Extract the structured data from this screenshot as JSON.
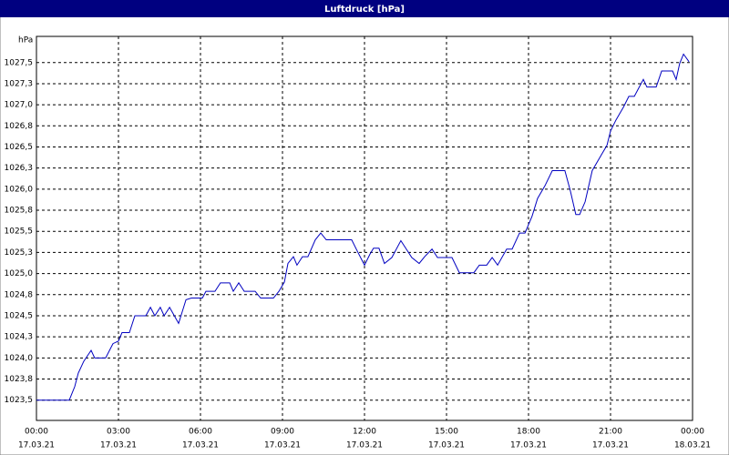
{
  "chart_data": {
    "type": "line",
    "title": "Luftdruck [hPa]",
    "y_unit": "hPa",
    "x": [
      0,
      1.2,
      1.4,
      1.53,
      1.73,
      2,
      2.13,
      2.53,
      2.8,
      3,
      3.13,
      3.4,
      3.6,
      4,
      4.17,
      4.33,
      4.53,
      4.67,
      4.87,
      5.2,
      5.47,
      5.67,
      6.07,
      6.2,
      6.53,
      6.73,
      7.07,
      7.2,
      7.4,
      7.6,
      8,
      8.2,
      8.67,
      8.87,
      9.07,
      9.2,
      9.4,
      9.53,
      9.73,
      9.93,
      10.2,
      10.4,
      10.6,
      11.53,
      11.73,
      12,
      12.2,
      12.33,
      12.53,
      12.73,
      13,
      13.33,
      13.53,
      13.73,
      14,
      14.2,
      14.47,
      14.67,
      15.2,
      15.47,
      16,
      16.2,
      16.47,
      16.67,
      16.87,
      17.2,
      17.4,
      17.67,
      17.87,
      18.13,
      18.33,
      18.6,
      18.87,
      19.33,
      19.53,
      19.73,
      19.87,
      20.07,
      20.33,
      20.67,
      20.87,
      21,
      21.2,
      21.47,
      21.67,
      21.87,
      22.2,
      22.33,
      22.67,
      22.87,
      23.27,
      23.4,
      23.53,
      23.67,
      23.87
    ],
    "values": [
      1023.5,
      1023.5,
      1023.66,
      1023.82,
      1023.96,
      1024.09,
      1024.0,
      1024.0,
      1024.17,
      1024.2,
      1024.3,
      1024.3,
      1024.5,
      1024.5,
      1024.6,
      1024.5,
      1024.6,
      1024.5,
      1024.6,
      1024.41,
      1024.69,
      1024.71,
      1024.71,
      1024.79,
      1024.79,
      1024.89,
      1024.89,
      1024.79,
      1024.89,
      1024.79,
      1024.79,
      1024.71,
      1024.71,
      1024.79,
      1024.9,
      1025.12,
      1025.2,
      1025.1,
      1025.2,
      1025.2,
      1025.4,
      1025.48,
      1025.4,
      1025.4,
      1025.27,
      1025.1,
      1025.23,
      1025.3,
      1025.3,
      1025.12,
      1025.19,
      1025.39,
      1025.29,
      1025.19,
      1025.12,
      1025.2,
      1025.29,
      1025.19,
      1025.19,
      1025.01,
      1025.01,
      1025.1,
      1025.1,
      1025.19,
      1025.1,
      1025.29,
      1025.29,
      1025.48,
      1025.48,
      1025.68,
      1025.89,
      1026.04,
      1026.22,
      1026.22,
      1025.98,
      1025.7,
      1025.7,
      1025.85,
      1026.22,
      1026.41,
      1026.52,
      1026.69,
      1026.82,
      1026.97,
      1027.1,
      1027.1,
      1027.3,
      1027.21,
      1027.21,
      1027.4,
      1027.4,
      1027.3,
      1027.49,
      1027.6,
      1027.51
    ],
    "color": "#0000c0",
    "xlim": [
      0,
      24
    ],
    "xticks": [
      {
        "value": 0,
        "label": "00:00"
      },
      {
        "value": 3,
        "label": "03:00"
      },
      {
        "value": 6,
        "label": "06:00"
      },
      {
        "value": 9,
        "label": "09:00"
      },
      {
        "value": 12,
        "label": "12:00"
      },
      {
        "value": 15,
        "label": "15:00"
      },
      {
        "value": 18,
        "label": "18:00"
      },
      {
        "value": 21,
        "label": "21:00"
      },
      {
        "value": 24,
        "label": "00:00"
      }
    ],
    "xtick_dates": [
      "17.03.21",
      "17.03.21",
      "17.03.21",
      "17.03.21",
      "17.03.21",
      "17.03.21",
      "17.03.21",
      "17.03.21",
      "18.03.21"
    ],
    "ylim": [
      1023.26,
      1027.81
    ],
    "yticks": [
      {
        "value": 1023.5,
        "label": "1023,5"
      },
      {
        "value": 1023.75,
        "label": "1023,8"
      },
      {
        "value": 1024,
        "label": "1024,0"
      },
      {
        "value": 1024.25,
        "label": "1024,3"
      },
      {
        "value": 1024.5,
        "label": "1024,5"
      },
      {
        "value": 1024.75,
        "label": "1024,8"
      },
      {
        "value": 1025,
        "label": "1025,0"
      },
      {
        "value": 1025.25,
        "label": "1025,3"
      },
      {
        "value": 1025.5,
        "label": "1025,5"
      },
      {
        "value": 1025.75,
        "label": "1025,8"
      },
      {
        "value": 1026,
        "label": "1026,0"
      },
      {
        "value": 1026.25,
        "label": "1026,3"
      },
      {
        "value": 1026.5,
        "label": "1026,5"
      },
      {
        "value": 1026.75,
        "label": "1026,8"
      },
      {
        "value": 1027,
        "label": "1027,0"
      },
      {
        "value": 1027.25,
        "label": "1027,3"
      },
      {
        "value": 1027.5,
        "label": "1027,5"
      }
    ],
    "grid": true
  }
}
